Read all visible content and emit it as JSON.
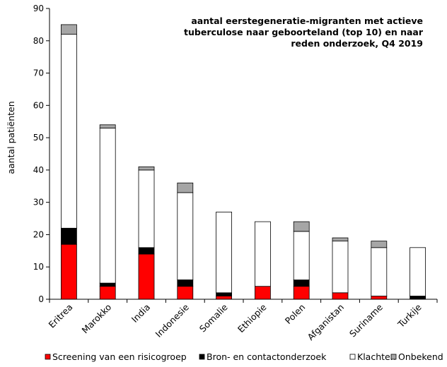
{
  "chart_data": {
    "type": "bar",
    "stacked": true,
    "title_lines": [
      "aantal eerstegeneratie-migranten met actieve",
      "tuberculose naar geboorteland (top 10) en naar",
      "reden onderzoek, Q4 2019"
    ],
    "ylabel": "aantal patiënten",
    "xlabel": "",
    "ylim": [
      0,
      90
    ],
    "yticks": [
      "0",
      "10",
      "20",
      "30",
      "40",
      "50",
      "60",
      "70",
      "80",
      "90"
    ],
    "grid": false,
    "legend_position": "bottom",
    "categories": [
      "Eritrea",
      "Marokko",
      "India",
      "Indonesie",
      "Somalie",
      "Ethiopie",
      "Polen",
      "Afganistan",
      "Suriname",
      "Turkije"
    ],
    "series": [
      {
        "name": "Screening van een risicogroep",
        "color": "#ff0000",
        "values": [
          17,
          4,
          14,
          4,
          1,
          4,
          4,
          2,
          1,
          0
        ]
      },
      {
        "name": "Bron- en contactonderzoek",
        "color": "#000000",
        "values": [
          5,
          1,
          2,
          2,
          1,
          0,
          2,
          0,
          0,
          1
        ]
      },
      {
        "name": "Klachten",
        "color": "#ffffff",
        "values": [
          60,
          48,
          24,
          27,
          25,
          20,
          15,
          16,
          15,
          15
        ]
      },
      {
        "name": "Onbekend",
        "color": "#a6a6a6",
        "values": [
          3,
          1,
          1,
          3,
          0,
          0,
          3,
          1,
          2,
          0
        ]
      }
    ]
  }
}
